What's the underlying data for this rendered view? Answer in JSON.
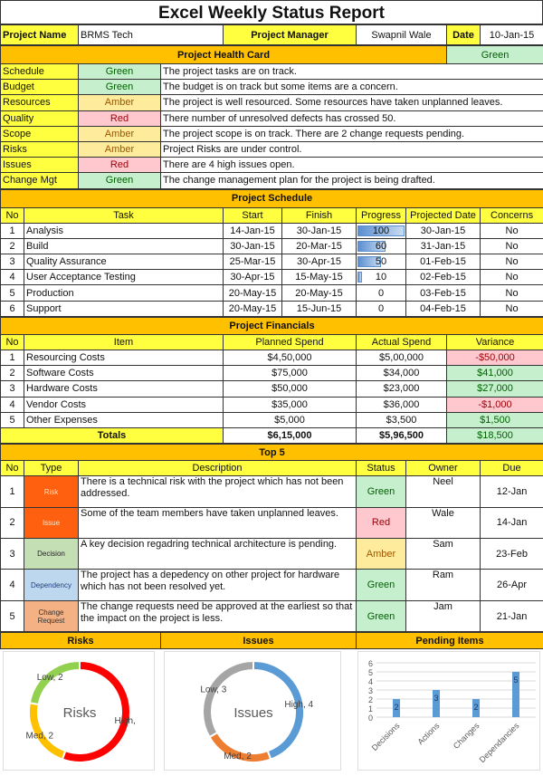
{
  "title": "Excel Weekly Status Report",
  "header": {
    "project_name_label": "Project Name",
    "project_name": "BRMS Tech",
    "manager_label": "Project Manager",
    "manager": "Swapnil Wale",
    "date_label": "Date",
    "date": "10-Jan-15"
  },
  "health": {
    "title": "Project Health Card",
    "overall": "Green",
    "rows": [
      {
        "area": "Schedule",
        "status": "Green",
        "note": "The project tasks are on track."
      },
      {
        "area": "Budget",
        "status": "Green",
        "note": "The budget is on track but some items are a concern."
      },
      {
        "area": "Resources",
        "status": "Amber",
        "note": "The project is well resourced. Some resources have taken unplanned leaves."
      },
      {
        "area": "Quality",
        "status": "Red",
        "note": "There number of unresolved defects has crossed 50."
      },
      {
        "area": "Scope",
        "status": "Amber",
        "note": "The project scope is on track. There are 2 change requests pending."
      },
      {
        "area": "Risks",
        "status": "Amber",
        "note": "Project Risks are under control."
      },
      {
        "area": "Issues",
        "status": "Red",
        "note": "There are 4 high issues open."
      },
      {
        "area": "Change Mgt",
        "status": "Green",
        "note": "The change management plan for the project is being drafted."
      }
    ]
  },
  "schedule": {
    "title": "Project Schedule",
    "columns": [
      "No",
      "Task",
      "Start",
      "Finish",
      "Progress",
      "Projected Date",
      "Concerns"
    ],
    "rows": [
      {
        "no": "1",
        "task": "Analysis",
        "start": "14-Jan-15",
        "finish": "30-Jan-15",
        "progress": 100,
        "projected": "30-Jan-15",
        "concerns": "No"
      },
      {
        "no": "2",
        "task": "Build",
        "start": "30-Jan-15",
        "finish": "20-Mar-15",
        "progress": 60,
        "projected": "31-Jan-15",
        "concerns": "No"
      },
      {
        "no": "3",
        "task": "Quality Assurance",
        "start": "25-Mar-15",
        "finish": "30-Apr-15",
        "progress": 50,
        "projected": "01-Feb-15",
        "concerns": "No"
      },
      {
        "no": "4",
        "task": "User Acceptance Testing",
        "start": "30-Apr-15",
        "finish": "15-May-15",
        "progress": 10,
        "projected": "02-Feb-15",
        "concerns": "No"
      },
      {
        "no": "5",
        "task": "Production",
        "start": "20-May-15",
        "finish": "20-May-15",
        "progress": 0,
        "projected": "03-Feb-15",
        "concerns": "No"
      },
      {
        "no": "6",
        "task": "Support",
        "start": "20-May-15",
        "finish": "15-Jun-15",
        "progress": 0,
        "projected": "04-Feb-15",
        "concerns": "No"
      }
    ]
  },
  "financials": {
    "title": "Project Financials",
    "columns": [
      "No",
      "Item",
      "Planned Spend",
      "Actual Spend",
      "Variance"
    ],
    "rows": [
      {
        "no": "1",
        "item": "Resourcing Costs",
        "planned": "$4,50,000",
        "actual": "$5,00,000",
        "variance": "-$50,000",
        "neg": true
      },
      {
        "no": "2",
        "item": "Software Costs",
        "planned": "$75,000",
        "actual": "$34,000",
        "variance": "$41,000",
        "neg": false
      },
      {
        "no": "3",
        "item": "Hardware Costs",
        "planned": "$50,000",
        "actual": "$23,000",
        "variance": "$27,000",
        "neg": false
      },
      {
        "no": "4",
        "item": "Vendor Costs",
        "planned": "$35,000",
        "actual": "$36,000",
        "variance": "-$1,000",
        "neg": true
      },
      {
        "no": "5",
        "item": "Other Expenses",
        "planned": "$5,000",
        "actual": "$3,500",
        "variance": "$1,500",
        "neg": false
      }
    ],
    "totals": {
      "label": "Totals",
      "planned": "$6,15,000",
      "actual": "$5,96,500",
      "variance": "$18,500"
    }
  },
  "top5": {
    "title": "Top 5",
    "columns": [
      "No",
      "Type",
      "Description",
      "Status",
      "Owner",
      "Due"
    ],
    "rows": [
      {
        "no": "1",
        "type": "Risk",
        "type_color": "#ff6010",
        "type_text": "#ffe0c0",
        "desc": "There is a technical risk with the project which has not been addressed.",
        "status": "Green",
        "owner": "Neel",
        "due": "12-Jan"
      },
      {
        "no": "2",
        "type": "Issue",
        "type_color": "#ff6010",
        "type_text": "#ffe0c0",
        "desc": "Some of the team members have taken unplanned leaves.",
        "status": "Red",
        "owner": "Wale",
        "due": "14-Jan"
      },
      {
        "no": "3",
        "type": "Decision",
        "type_color": "#c4dfb3",
        "type_text": "#222",
        "desc": "A key decision regadring technical architecture is pending.",
        "status": "Amber",
        "owner": "Sam",
        "due": "23-Feb"
      },
      {
        "no": "4",
        "type": "Dependency",
        "type_color": "#bdd7ee",
        "type_text": "#1f3f7f",
        "desc": "The project has a depedency on other project for hardware which has not been resolved yet.",
        "status": "Green",
        "owner": "Ram",
        "due": "26-Apr"
      },
      {
        "no": "5",
        "type": "Change Request",
        "type_color": "#f4b183",
        "type_text": "#333",
        "desc": "The change requests need be approved at the earliest so that the impact on the project is less.",
        "status": "Green",
        "owner": "Jam",
        "due": "21-Jan"
      }
    ]
  },
  "chart_data": [
    {
      "type": "pie",
      "title": "Risks",
      "center_label": "Risks",
      "slices": [
        {
          "label": "High,",
          "value": 5,
          "color": "#ff0000"
        },
        {
          "label": "Med, 2",
          "value": 2,
          "color": "#ffc000"
        },
        {
          "label": "Low, 2",
          "value": 2,
          "color": "#92d050"
        }
      ]
    },
    {
      "type": "pie",
      "title": "Issues",
      "center_label": "Issues",
      "slices": [
        {
          "label": "High, 4",
          "value": 4,
          "color": "#5b9bd5"
        },
        {
          "label": "Med, 2",
          "value": 2,
          "color": "#ed7d31"
        },
        {
          "label": "Low, 3",
          "value": 3,
          "color": "#a5a5a5"
        }
      ]
    },
    {
      "type": "bar",
      "title": "Pending Items",
      "categories": [
        "Decisions",
        "Actions",
        "Changes",
        "Dependancies"
      ],
      "values": [
        2,
        3,
        2,
        5
      ],
      "ylim": [
        0,
        6
      ],
      "yticks": [
        "0",
        "1",
        "2",
        "3",
        "4",
        "5",
        "6"
      ],
      "grid": true,
      "color": "#5b9bd5"
    }
  ]
}
